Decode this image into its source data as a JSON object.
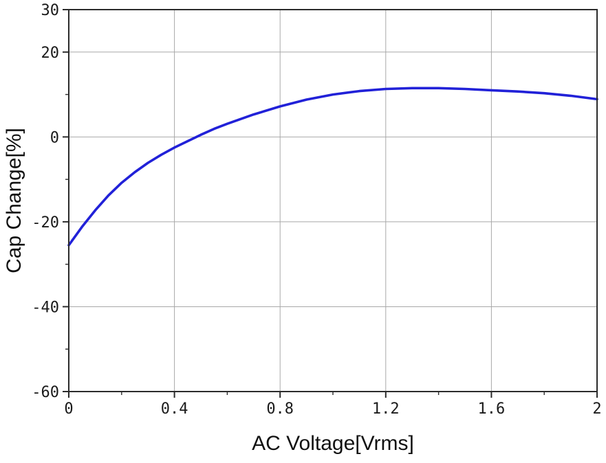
{
  "chart_data": {
    "type": "line",
    "title": "",
    "xlabel": "AC Voltage[Vrms]",
    "ylabel": "Cap Change[%]",
    "xlim": [
      0,
      2
    ],
    "ylim": [
      -60,
      30
    ],
    "x_major_ticks": [
      0,
      0.4,
      0.8,
      1.2,
      1.6,
      2
    ],
    "x_tick_labels": [
      "0",
      "0.4",
      "0.8",
      "1.2",
      "1.6",
      "2"
    ],
    "x_minor_step": 0.2,
    "y_major_ticks": [
      30,
      20,
      0,
      -20,
      -40,
      -60
    ],
    "y_tick_labels": [
      "30",
      "20",
      "0",
      "-20",
      "-40",
      "-60"
    ],
    "y_minor_step": 10,
    "x_grid": [
      0.4,
      0.8,
      1.2,
      1.6
    ],
    "y_grid": [
      20,
      0,
      -20,
      -40
    ],
    "grid": true,
    "legend": false,
    "colors": {
      "line": "#2121d8",
      "grid": "#a8a8a8",
      "frame": "#2b2b2b",
      "text": "#1a1a1a"
    },
    "series": [
      {
        "name": "Cap Change",
        "x": [
          0,
          0.05,
          0.1,
          0.15,
          0.2,
          0.25,
          0.3,
          0.35,
          0.4,
          0.45,
          0.5,
          0.55,
          0.6,
          0.7,
          0.8,
          0.9,
          1.0,
          1.1,
          1.2,
          1.3,
          1.4,
          1.5,
          1.6,
          1.7,
          1.8,
          1.9,
          2.0
        ],
        "y": [
          -25.5,
          -21.2,
          -17.3,
          -13.8,
          -10.8,
          -8.3,
          -6.1,
          -4.2,
          -2.5,
          -1.0,
          0.5,
          1.9,
          3.1,
          5.3,
          7.2,
          8.8,
          10.0,
          10.8,
          11.3,
          11.5,
          11.5,
          11.3,
          11.0,
          10.7,
          10.3,
          9.7,
          8.9
        ]
      }
    ]
  }
}
